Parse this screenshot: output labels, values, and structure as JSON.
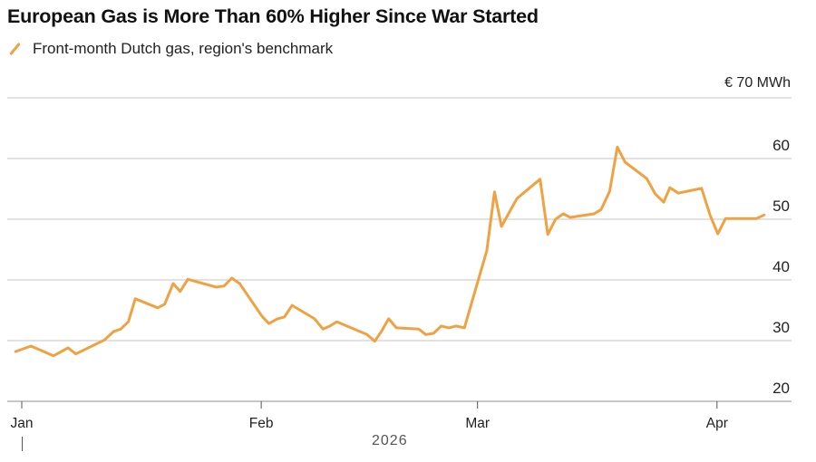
{
  "title": "European Gas is More Than 60% Higher Since War Started",
  "legend": "Front-month Dutch gas, region's benchmark",
  "colors": {
    "line": "#f0a243",
    "grid": "#d0d0d0"
  },
  "chart_data": {
    "type": "line",
    "title": "European Gas is More Than 60% Higher Since War Started",
    "series": [
      {
        "name": "Front-month Dutch gas, region's benchmark",
        "x_days_since_jan1": [
          -0.8,
          1.2,
          4.1,
          6.0,
          7.0,
          10.7,
          11.9,
          12.8,
          13.8,
          14.7,
          17.6,
          18.5,
          19.6,
          20.5,
          21.5,
          25.2,
          26.2,
          27.2,
          28.2,
          31.1,
          32.0,
          33.1,
          34.0,
          35.0,
          37.9,
          39.0,
          39.9,
          40.8,
          44.7,
          45.7,
          46.6,
          47.5,
          48.5,
          51.4,
          52.3,
          53.3,
          54.3,
          55.3,
          56.2,
          57.3,
          60.2,
          61.2,
          62.1,
          64.1,
          67.1,
          68.1,
          69.1,
          70.1,
          71.0,
          74.1,
          75.0,
          76.1,
          77.1,
          78.1,
          80.9,
          82.0,
          83.1,
          83.9,
          85.0,
          88.0,
          89.1,
          90.1,
          91.1,
          95.1,
          96.1
        ],
        "values": [
          28.2,
          29.1,
          27.5,
          28.8,
          27.8,
          30.1,
          31.5,
          31.9,
          33.1,
          36.9,
          35.4,
          36.0,
          39.4,
          38.1,
          40.1,
          38.8,
          39.0,
          40.3,
          39.4,
          34.0,
          32.8,
          33.6,
          33.9,
          35.8,
          33.6,
          31.9,
          32.4,
          33.1,
          31.0,
          29.9,
          31.6,
          33.6,
          32.1,
          31.9,
          31.0,
          31.2,
          32.4,
          32.1,
          32.4,
          32.1,
          44.8,
          54.5,
          48.8,
          53.4,
          56.6,
          47.5,
          50.0,
          50.9,
          50.3,
          50.9,
          51.6,
          54.6,
          61.9,
          59.4,
          56.7,
          54.2,
          52.8,
          55.2,
          54.3,
          55.1,
          50.7,
          47.6,
          50.1,
          50.1,
          50.7
        ]
      }
    ],
    "y_unit_label": "€ 70 MWh",
    "yticks": [
      {
        "value": 20,
        "label": "20"
      },
      {
        "value": 30,
        "label": "30"
      },
      {
        "value": 40,
        "label": "40"
      },
      {
        "value": 50,
        "label": "50"
      },
      {
        "value": 60,
        "label": "60"
      },
      {
        "value": 70,
        "label": "€ 70 MWh"
      }
    ],
    "ylim": [
      20,
      70
    ],
    "xticks": [
      {
        "day": 0,
        "label": "Jan"
      },
      {
        "day": 31,
        "label": "Feb"
      },
      {
        "day": 59,
        "label": "Mar"
      },
      {
        "day": 90,
        "label": "Apr"
      }
    ],
    "xlabel": "2026",
    "grid": true,
    "legend_position": "top-left"
  }
}
